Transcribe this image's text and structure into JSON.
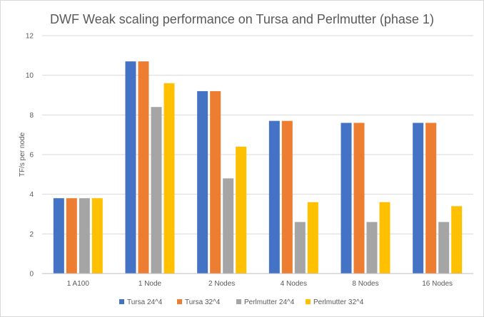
{
  "chart_data": {
    "type": "bar",
    "title": "DWF Weak scaling performance  on Tursa and Perlmutter (phase 1)",
    "xlabel": "",
    "ylabel": "TF/s per node",
    "ylim": [
      0,
      12
    ],
    "yticks": [
      0,
      2,
      4,
      6,
      8,
      10,
      12
    ],
    "grid": true,
    "legend": "bottom",
    "categories": [
      "1 A100",
      "1 Node",
      "2 Nodes",
      "4 Nodes",
      "8 Nodes",
      "16 Nodes"
    ],
    "series": [
      {
        "name": "Tursa 24^4",
        "color": "#4472c4",
        "values": [
          3.8,
          10.7,
          9.2,
          7.7,
          7.6,
          7.6
        ]
      },
      {
        "name": "Tursa 32^4",
        "color": "#ed7d31",
        "values": [
          3.8,
          10.7,
          9.2,
          7.7,
          7.6,
          7.6
        ]
      },
      {
        "name": "Perlmutter 24^4",
        "color": "#a5a5a5",
        "values": [
          3.8,
          8.4,
          4.8,
          2.6,
          2.6,
          2.6
        ]
      },
      {
        "name": "Perlmutter 32^4",
        "color": "#ffc000",
        "values": [
          3.8,
          9.6,
          6.4,
          3.6,
          3.6,
          3.4
        ]
      }
    ]
  }
}
